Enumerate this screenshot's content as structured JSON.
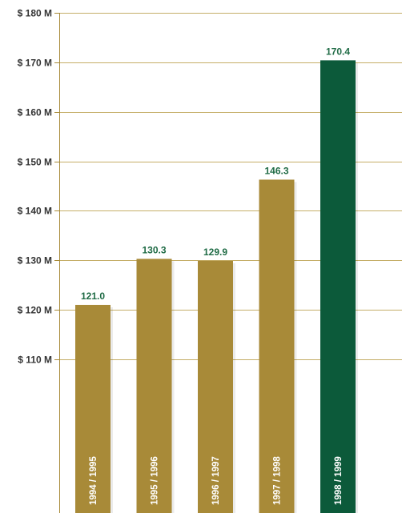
{
  "chart_data": {
    "type": "bar",
    "title": "",
    "xlabel": "",
    "ylabel": "",
    "categories": [
      "1994 / 1995",
      "1995 / 1996",
      "1996 / 1997",
      "1997 / 1998",
      "1998 / 1999"
    ],
    "values": [
      121.0,
      130.3,
      129.9,
      146.3,
      170.4
    ],
    "value_labels": [
      "121.0",
      "130.3",
      "129.9",
      "146.3",
      "170.4"
    ],
    "ylim": [
      110,
      180
    ],
    "y_ticks": [
      110,
      120,
      130,
      140,
      150,
      160,
      170,
      180
    ],
    "y_tick_labels": [
      "$ 110 M",
      "$ 120 M",
      "$ 130 M",
      "$ 140 M",
      "$ 150 M",
      "$ 160 M",
      "$ 170 M",
      "$ 180 M"
    ],
    "grid": true,
    "legend": "none",
    "highlight_index": 4,
    "colors": {
      "bar": "#A88A38",
      "highlight_bar": "#0C5A3A",
      "value_label": "#1F6B45",
      "gridline": "#C5AE68",
      "axis": "#A88A38"
    }
  }
}
